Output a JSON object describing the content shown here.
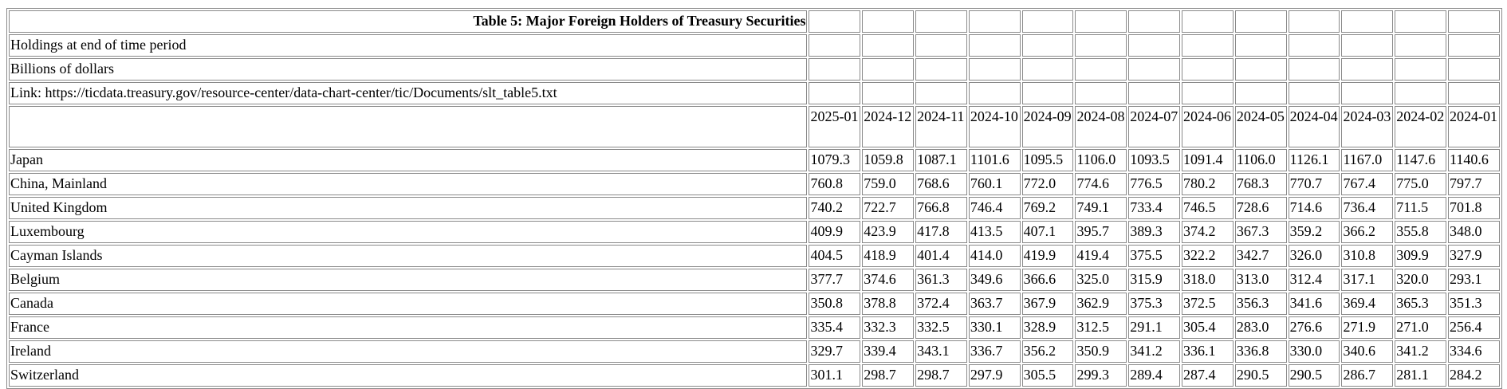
{
  "title": "Table 5: Major Foreign Holders of Treasury Securities",
  "notes": [
    "Holdings at end of time period",
    "Billions of dollars",
    "Link: https://ticdata.treasury.gov/resource-center/data-chart-center/tic/Documents/slt_table5.txt"
  ],
  "periods": [
    "2025-01",
    "2024-12",
    "2024-11",
    "2024-10",
    "2024-09",
    "2024-08",
    "2024-07",
    "2024-06",
    "2024-05",
    "2024-04",
    "2024-03",
    "2024-02",
    "2024-01"
  ],
  "rows": [
    {
      "country": "Japan",
      "values": [
        "1079.3",
        "1059.8",
        "1087.1",
        "1101.6",
        "1095.5",
        "1106.0",
        "1093.5",
        "1091.4",
        "1106.0",
        "1126.1",
        "1167.0",
        "1147.6",
        "1140.6"
      ]
    },
    {
      "country": "China, Mainland",
      "values": [
        "760.8",
        "759.0",
        "768.6",
        "760.1",
        "772.0",
        "774.6",
        "776.5",
        "780.2",
        "768.3",
        "770.7",
        "767.4",
        "775.0",
        "797.7"
      ]
    },
    {
      "country": "United Kingdom",
      "values": [
        "740.2",
        "722.7",
        "766.8",
        "746.4",
        "769.2",
        "749.1",
        "733.4",
        "746.5",
        "728.6",
        "714.6",
        "736.4",
        "711.5",
        "701.8"
      ]
    },
    {
      "country": "Luxembourg",
      "values": [
        "409.9",
        "423.9",
        "417.8",
        "413.5",
        "407.1",
        "395.7",
        "389.3",
        "374.2",
        "367.3",
        "359.2",
        "366.2",
        "355.8",
        "348.0"
      ]
    },
    {
      "country": "Cayman Islands",
      "values": [
        "404.5",
        "418.9",
        "401.4",
        "414.0",
        "419.9",
        "419.4",
        "375.5",
        "322.2",
        "342.7",
        "326.0",
        "310.8",
        "309.9",
        "327.9"
      ]
    },
    {
      "country": "Belgium",
      "values": [
        "377.7",
        "374.6",
        "361.3",
        "349.6",
        "366.6",
        "325.0",
        "315.9",
        "318.0",
        "313.0",
        "312.4",
        "317.1",
        "320.0",
        "293.1"
      ]
    },
    {
      "country": "Canada",
      "values": [
        "350.8",
        "378.8",
        "372.4",
        "363.7",
        "367.9",
        "362.9",
        "375.3",
        "372.5",
        "356.3",
        "341.6",
        "369.4",
        "365.3",
        "351.3"
      ]
    },
    {
      "country": "France",
      "values": [
        "335.4",
        "332.3",
        "332.5",
        "330.1",
        "328.9",
        "312.5",
        "291.1",
        "305.4",
        "283.0",
        "276.6",
        "271.9",
        "271.0",
        "256.4"
      ]
    },
    {
      "country": "Ireland",
      "values": [
        "329.7",
        "339.4",
        "343.1",
        "336.7",
        "356.2",
        "350.9",
        "341.2",
        "336.1",
        "336.8",
        "330.0",
        "340.6",
        "341.2",
        "334.6"
      ]
    },
    {
      "country": "Switzerland",
      "values": [
        "301.1",
        "298.7",
        "298.7",
        "297.9",
        "305.5",
        "299.3",
        "289.4",
        "287.4",
        "290.5",
        "290.5",
        "286.7",
        "281.1",
        "284.2"
      ]
    }
  ]
}
